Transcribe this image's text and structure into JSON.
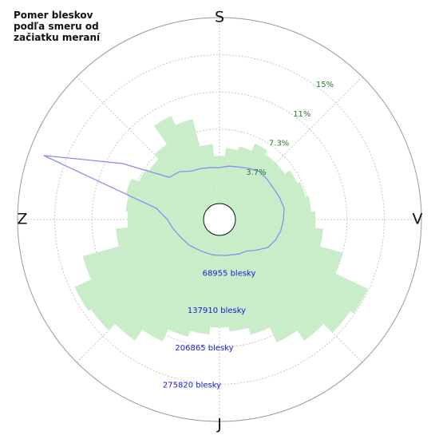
{
  "chart_data": {
    "type": "polar",
    "title": "Pomer bleskov podľa smeru od začiatku meraní",
    "direction_labels": [
      "S",
      "V",
      "J",
      "Z"
    ],
    "x": [
      0,
      10,
      20,
      30,
      40,
      50,
      60,
      70,
      80,
      90,
      100,
      110,
      120,
      130,
      140,
      150,
      160,
      170,
      180,
      190,
      200,
      210,
      220,
      230,
      240,
      250,
      260,
      270,
      280,
      290,
      300,
      310,
      320,
      330,
      340,
      350
    ],
    "series": [
      {
        "color": "#c9edc9",
        "values": [
          4.7,
          5.5,
          5.9,
          6.7,
          6.3,
          6.3,
          6.9,
          7.2,
          7.5,
          7.9,
          8.7,
          11.0,
          14.6,
          14.2,
          13.0,
          11.8,
          10.2,
          9.5,
          9.1,
          9.8,
          10.4,
          11.7,
          13.0,
          13.9,
          14.2,
          12.4,
          8.7,
          7.5,
          7.7,
          8.0,
          7.2,
          6.9,
          7.5,
          9.7,
          8.7,
          5.9
        ]
      },
      {
        "color": "#8c8cf0",
        "axis": "y2",
        "values": [
          66600,
          71000,
          74000,
          80000,
          86000,
          86000,
          86000,
          89000,
          92000,
          89000,
          86000,
          81000,
          74000,
          59000,
          47000,
          44000,
          40000,
          38000,
          37000,
          37000,
          37000,
          38000,
          40000,
          44000,
          47000,
          52000,
          59000,
          67000,
          89000,
          317000,
          178000,
          92000,
          86000,
          74000,
          71000,
          68000
        ]
      }
    ],
    "ylim": [
      0,
      18.35
    ],
    "yticks": [
      {
        "value": 3.67,
        "label": "3.7%"
      },
      {
        "value": 7.34,
        "label": "7.3%"
      },
      {
        "value": 11.01,
        "label": "11%"
      },
      {
        "value": 14.68,
        "label": "15%"
      }
    ],
    "y2lim": [
      0,
      344775
    ],
    "y2ticks": [
      {
        "value": 68955,
        "label": "68955 blesky"
      },
      {
        "value": 137910,
        "label": "137910 blesky"
      },
      {
        "value": 206865,
        "label": "206865 blesky"
      },
      {
        "value": 275820,
        "label": "275820 blesky"
      }
    ],
    "ytick_color": "#2a7a2a",
    "y2tick_color": "#1a1ad0",
    "grid": true
  }
}
